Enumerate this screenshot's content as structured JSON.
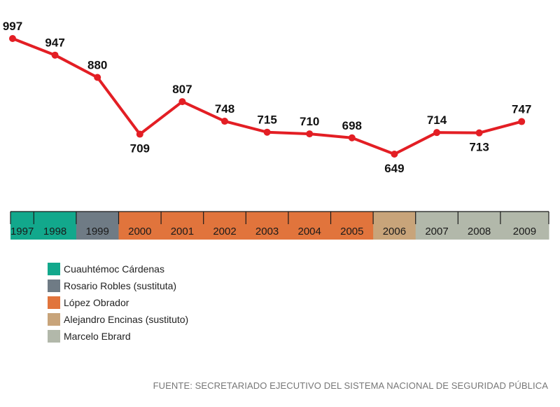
{
  "chart_data": {
    "type": "line",
    "x": [
      "1997",
      "1998",
      "1999",
      "2000",
      "2001",
      "2002",
      "2003",
      "2004",
      "2005",
      "2006",
      "2007",
      "2008",
      "2009"
    ],
    "series": [
      {
        "values": [
          997,
          947,
          880,
          709,
          807,
          748,
          715,
          710,
          698,
          649,
          714,
          713,
          747
        ],
        "color": "#e31e24"
      }
    ],
    "ylim": [
      600,
      1000
    ],
    "grid": false,
    "legend": {
      "placement": "bottom-left",
      "entries": [
        {
          "label": "Cuauhtémoc Cárdenas",
          "color": "#12a88c"
        },
        {
          "label": "Rosario Robles (sustituta)",
          "color": "#6f7b85"
        },
        {
          "label": "López Obrador",
          "color": "#e1743c"
        },
        {
          "label": "Alejandro Encinas (sustituto)",
          "color": "#c8a47a"
        },
        {
          "label": "Marcelo Ebrard",
          "color": "#b2b8aa"
        }
      ]
    },
    "timeline": [
      {
        "year": "1997",
        "color": "#12a88c"
      },
      {
        "year": "1998",
        "color": "#12a88c"
      },
      {
        "year": "1999",
        "color": "#6f7b85"
      },
      {
        "year": "2000",
        "color": "#e1743c"
      },
      {
        "year": "2001",
        "color": "#e1743c"
      },
      {
        "year": "2002",
        "color": "#e1743c"
      },
      {
        "year": "2003",
        "color": "#e1743c"
      },
      {
        "year": "2004",
        "color": "#e1743c"
      },
      {
        "year": "2005",
        "color": "#e1743c"
      },
      {
        "year": "2006",
        "color": "#c8a47a"
      },
      {
        "year": "2007",
        "color": "#b2b8aa"
      },
      {
        "year": "2008",
        "color": "#b2b8aa"
      },
      {
        "year": "2009",
        "color": "#b2b8aa"
      }
    ]
  },
  "source": "FUENTE: SECRETARIADO EJECUTIVO DEL SISTEMA NACIONAL DE SEGURIDAD PÚBLICA"
}
